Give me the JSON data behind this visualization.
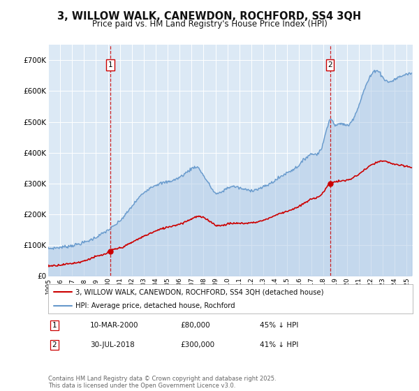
{
  "title": "3, WILLOW WALK, CANEWDON, ROCHFORD, SS4 3QH",
  "subtitle": "Price paid vs. HM Land Registry's House Price Index (HPI)",
  "background_color": "#dce9f5",
  "plot_bg_color": "#dce9f5",
  "ylim": [
    0,
    750000
  ],
  "yticks": [
    0,
    100000,
    200000,
    300000,
    400000,
    500000,
    600000,
    700000
  ],
  "ytick_labels": [
    "£0",
    "£100K",
    "£200K",
    "£300K",
    "£400K",
    "£500K",
    "£600K",
    "£700K"
  ],
  "sale1_date": 2000.19,
  "sale1_price": 80000,
  "sale1_label": "1",
  "sale2_date": 2018.58,
  "sale2_price": 300000,
  "sale2_label": "2",
  "red_line_color": "#cc0000",
  "blue_line_color": "#6699cc",
  "blue_fill_color": "#adc8e6",
  "legend_label_red": "3, WILLOW WALK, CANEWDON, ROCHFORD, SS4 3QH (detached house)",
  "legend_label_blue": "HPI: Average price, detached house, Rochford",
  "annotation1_date": "10-MAR-2000",
  "annotation1_price": "£80,000",
  "annotation1_hpi": "45% ↓ HPI",
  "annotation2_date": "30-JUL-2018",
  "annotation2_price": "£300,000",
  "annotation2_hpi": "41% ↓ HPI",
  "footer": "Contains HM Land Registry data © Crown copyright and database right 2025.\nThis data is licensed under the Open Government Licence v3.0."
}
